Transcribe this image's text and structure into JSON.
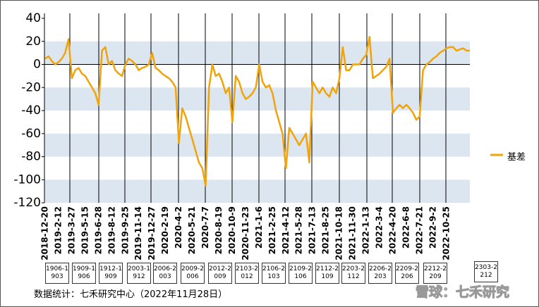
{
  "chart_data": {
    "type": "line",
    "categories": [
      "2018-12-20",
      null,
      null,
      null,
      "2019-2-12",
      null,
      null,
      null,
      "2019-3-27",
      null,
      null,
      null,
      "2019-5-15",
      null,
      null,
      null,
      "2019-6-28",
      null,
      null,
      null,
      "2019-8-12",
      null,
      null,
      null,
      "2019-9-25",
      null,
      null,
      null,
      "2019-11-14",
      null,
      null,
      null,
      "2019-12-27",
      null,
      null,
      null,
      "2020-2-19",
      null,
      null,
      null,
      "2020-4-2",
      null,
      null,
      null,
      "2020-5-21",
      null,
      null,
      null,
      "2020-7-7",
      null,
      null,
      null,
      "2020-8-19",
      null,
      null,
      null,
      "2020-10-9",
      null,
      null,
      null,
      "2020-11-23",
      null,
      null,
      null,
      "2021-1-6",
      null,
      null,
      null,
      "2021-2-25",
      null,
      null,
      null,
      "2021-4-12",
      null,
      null,
      null,
      "2021-5-28",
      null,
      null,
      null,
      "2021-7-13",
      null,
      null,
      null,
      "2021-8-25",
      null,
      null,
      null,
      "2021-10-18",
      null,
      null,
      null,
      "2021-11-30",
      null,
      null,
      null,
      "2022-1-13",
      null,
      null,
      null,
      "2022-3-4",
      null,
      null,
      null,
      "2022-4-20",
      null,
      null,
      null,
      "2022-6-8",
      null,
      null,
      null,
      "2022-7-21",
      null,
      null,
      null,
      "2022-9-2",
      null,
      null,
      null,
      "2022-10-25",
      null,
      null,
      null,
      null,
      null,
      null,
      null
    ],
    "series": [
      {
        "name": "基差",
        "color": "#f0a30a",
        "values": [
          5,
          7,
          3,
          0,
          2,
          5,
          10,
          22,
          -12,
          -5,
          -3,
          -8,
          -10,
          -15,
          -20,
          -25,
          -35,
          12,
          15,
          0,
          3,
          -5,
          -8,
          -10,
          0,
          5,
          3,
          0,
          -5,
          -3,
          -2,
          0,
          10,
          -3,
          -5,
          -8,
          -10,
          -12,
          -15,
          -20,
          -68,
          -38,
          -45,
          -55,
          -65,
          -75,
          -85,
          -90,
          -105,
          -20,
          0,
          -10,
          -8,
          -15,
          -25,
          -20,
          -50,
          -10,
          -15,
          -25,
          -30,
          -28,
          -25,
          -20,
          0,
          -15,
          -20,
          -18,
          -25,
          -40,
          -50,
          -60,
          -90,
          -55,
          -60,
          -65,
          -70,
          -65,
          -60,
          -85,
          -15,
          -20,
          -25,
          -20,
          -25,
          -28,
          -20,
          -25,
          -12,
          15,
          -5,
          -5,
          0,
          0,
          0,
          5,
          8,
          24,
          -12,
          -10,
          -8,
          -5,
          -2,
          5,
          -42,
          -38,
          -35,
          -38,
          -35,
          -38,
          -42,
          -48,
          -45,
          -5,
          0,
          2,
          5,
          7,
          10,
          12,
          14,
          15,
          15,
          12,
          13,
          14,
          12,
          12
        ]
      }
    ],
    "ylim": [
      -120,
      40
    ],
    "yticks": [
      40,
      20,
      0,
      -20,
      -40,
      -60,
      -80,
      -100,
      -120
    ],
    "legend": "right",
    "contracts": [
      "1906-1903",
      "1909-1906",
      "1912-1909",
      "2003-1912",
      "2006-2003",
      "2009-2006",
      "2012-2009",
      "2103-2012",
      "2106-2103",
      "2109-2106",
      "2112-2109",
      "2203-2112",
      "2206-2203",
      "2209-2206",
      "2212-2209",
      "2303-2212"
    ],
    "source": "数据统计：七禾研究中心（2022年11月28日）",
    "watermark": "雪球：七禾研究"
  }
}
